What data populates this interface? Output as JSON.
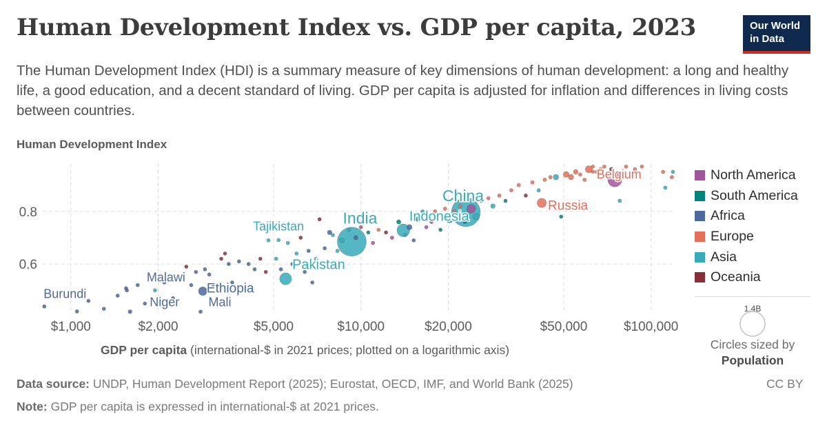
{
  "title": "Human Development Index vs. GDP per capita, 2023",
  "subtitle": "The Human Development Index (HDI) is a summary measure of key dimensions of human development: a long and healthy life, a good education, and a decent standard of living. GDP per capita is adjusted for inflation and differences in living costs between countries.",
  "logo": {
    "line1": "Our World",
    "line2": "in Data"
  },
  "footer": {
    "source_label": "Data source:",
    "source_text": " UNDP, Human Development Report (2025); Eurostat, OECD, IMF, and World Bank (2025)",
    "note_label": "Note:",
    "note_text": " GDP per capita is expressed in international-$ at 2021 prices.",
    "license": "CC BY"
  },
  "size_legend": {
    "value_label": "1.4B",
    "caption": "Circles sized by",
    "caption_bold": "Population"
  },
  "colors": {
    "North America": "#a2559c",
    "South America": "#00847e",
    "Africa": "#4c6a9c",
    "Europe": "#e56e5a",
    "Asia": "#38aaba",
    "Oceania": "#883039"
  },
  "chart_data": {
    "type": "scatter",
    "ylabel": "Human Development Index",
    "xlabel_bold": "GDP per capita",
    "xlabel_rest": " (international-$ in 2021 prices; plotted on a logarithmic axis)",
    "x_scale": "log",
    "xlim": [
      800,
      120000
    ],
    "ylim": [
      0.42,
      0.98
    ],
    "x_ticks": [
      {
        "value": 1000,
        "label": "$1,000"
      },
      {
        "value": 2000,
        "label": "$2,000"
      },
      {
        "value": 5000,
        "label": "$5,000"
      },
      {
        "value": 10000,
        "label": "$10,000"
      },
      {
        "value": 20000,
        "label": "$20,000"
      },
      {
        "value": 50000,
        "label": "$50,000"
      },
      {
        "value": 100000,
        "label": "$100,000"
      }
    ],
    "y_ticks": [
      {
        "value": 0.6,
        "label": "0.6"
      },
      {
        "value": 0.8,
        "label": "0.8"
      }
    ],
    "grid": true,
    "legend_position": "right",
    "legend": [
      "North America",
      "South America",
      "Africa",
      "Europe",
      "Asia",
      "Oceania"
    ],
    "labeled_points": [
      {
        "label": "China",
        "x": 23000,
        "y": 0.797,
        "continent": "Asia",
        "population_m": 1420,
        "label_dx": -4,
        "label_dy": -16,
        "label_size": 23,
        "anchor": "middle"
      },
      {
        "label": "India",
        "x": 9300,
        "y": 0.685,
        "continent": "Asia",
        "population_m": 1430,
        "label_dx": 12,
        "label_dy": -26,
        "label_size": 23,
        "anchor": "middle"
      },
      {
        "label": "Indonesia",
        "x": 14000,
        "y": 0.728,
        "continent": "Asia",
        "population_m": 277,
        "label_dx": 52,
        "label_dy": -14,
        "label_size": 20,
        "anchor": "middle"
      },
      {
        "label": "Russia",
        "x": 42000,
        "y": 0.832,
        "continent": "Europe",
        "population_m": 144,
        "label_dx": 38,
        "label_dy": 10,
        "label_size": 19,
        "anchor": "middle"
      },
      {
        "label": "Belgium",
        "x": 63000,
        "y": 0.951,
        "continent": "Europe",
        "population_m": 11.7,
        "label_dx": 38,
        "label_dy": 10,
        "label_size": 18,
        "anchor": "middle"
      },
      {
        "label": "Tajikistan",
        "x": 5200,
        "y": 0.691,
        "continent": "Asia",
        "population_m": 10,
        "label_dx": 0,
        "label_dy": -14,
        "label_size": 18,
        "anchor": "middle"
      },
      {
        "label": "Pakistan",
        "x": 5500,
        "y": 0.544,
        "continent": "Asia",
        "population_m": 240,
        "label_dx": 48,
        "label_dy": -14,
        "label_size": 20,
        "anchor": "middle"
      },
      {
        "label": "Malawi",
        "x": 1550,
        "y": 0.508,
        "continent": "Africa",
        "population_m": 20,
        "label_dx": 58,
        "label_dy": -10,
        "label_size": 18,
        "anchor": "middle"
      },
      {
        "label": "Ethiopia",
        "x": 2850,
        "y": 0.497,
        "continent": "Africa",
        "population_m": 126,
        "label_dx": 40,
        "label_dy": 2,
        "label_size": 19,
        "anchor": "middle"
      },
      {
        "label": "Burundi",
        "x": 810,
        "y": 0.439,
        "continent": "Africa",
        "population_m": 13,
        "label_dx": 30,
        "label_dy": -12,
        "label_size": 18,
        "anchor": "middle"
      },
      {
        "label": "Niger",
        "x": 1600,
        "y": 0.419,
        "continent": "Africa",
        "population_m": 27,
        "label_dx": 50,
        "label_dy": -8,
        "label_size": 18,
        "anchor": "middle"
      },
      {
        "label": "Mali",
        "x": 2800,
        "y": 0.419,
        "continent": "Africa",
        "population_m": 23,
        "label_dx": 28,
        "label_dy": -8,
        "label_size": 18,
        "anchor": "middle"
      }
    ],
    "points": [
      [
        1050,
        0.42,
        "Africa",
        10
      ],
      [
        1150,
        0.46,
        "Africa",
        8
      ],
      [
        1300,
        0.43,
        "Africa",
        6
      ],
      [
        1450,
        0.48,
        "Africa",
        12
      ],
      [
        1560,
        0.5,
        "Africa",
        9
      ],
      [
        1700,
        0.52,
        "Africa",
        15
      ],
      [
        1800,
        0.45,
        "Africa",
        7
      ],
      [
        1950,
        0.5,
        "Asia",
        5
      ],
      [
        2100,
        0.53,
        "Africa",
        12
      ],
      [
        2250,
        0.47,
        "Africa",
        6
      ],
      [
        2400,
        0.55,
        "Africa",
        18
      ],
      [
        2500,
        0.59,
        "Oceania",
        4
      ],
      [
        2600,
        0.52,
        "Africa",
        10
      ],
      [
        2700,
        0.57,
        "Africa",
        8
      ],
      [
        2900,
        0.58,
        "Africa",
        9
      ],
      [
        3000,
        0.56,
        "Africa",
        14
      ],
      [
        3100,
        0.52,
        "Africa",
        7
      ],
      [
        3200,
        0.46,
        "Africa",
        6
      ],
      [
        3300,
        0.62,
        "Oceania",
        2
      ],
      [
        3400,
        0.64,
        "Oceania",
        1
      ],
      [
        3500,
        0.6,
        "Africa",
        20
      ],
      [
        3600,
        0.53,
        "Africa",
        9
      ],
      [
        3800,
        0.61,
        "Africa",
        12
      ],
      [
        4000,
        0.5,
        "Africa",
        6
      ],
      [
        4100,
        0.6,
        "Africa",
        8
      ],
      [
        4300,
        0.58,
        "Africa",
        9
      ],
      [
        4500,
        0.62,
        "Oceania",
        1
      ],
      [
        4700,
        0.57,
        "Oceania",
        1
      ],
      [
        4800,
        0.69,
        "Asia",
        5
      ],
      [
        5100,
        0.62,
        "Asia",
        4
      ],
      [
        5300,
        0.58,
        "Africa",
        20
      ],
      [
        5600,
        0.68,
        "Asia",
        3
      ],
      [
        5800,
        0.6,
        "Africa",
        11
      ],
      [
        6000,
        0.64,
        "Asia",
        6
      ],
      [
        6200,
        0.7,
        "Oceania",
        1
      ],
      [
        6400,
        0.57,
        "Africa",
        10
      ],
      [
        6600,
        0.65,
        "Africa",
        12
      ],
      [
        6800,
        0.53,
        "Africa",
        9
      ],
      [
        7000,
        0.62,
        "Asia",
        17
      ],
      [
        7200,
        0.77,
        "Oceania",
        1
      ],
      [
        7500,
        0.66,
        "Africa",
        6
      ],
      [
        7800,
        0.72,
        "Africa",
        35
      ],
      [
        8000,
        0.71,
        "Asia",
        5
      ],
      [
        8300,
        0.65,
        "Asia",
        6
      ],
      [
        8600,
        0.69,
        "Asia",
        37
      ],
      [
        9100,
        0.73,
        "Asia",
        5
      ],
      [
        9600,
        0.7,
        "Africa",
        32
      ],
      [
        10000,
        0.74,
        "North America",
        2
      ],
      [
        10600,
        0.72,
        "South America",
        10
      ],
      [
        11000,
        0.68,
        "North America",
        6
      ],
      [
        11500,
        0.73,
        "Europe",
        3
      ],
      [
        12200,
        0.72,
        "Oceania",
        1
      ],
      [
        12800,
        0.7,
        "North America",
        4
      ],
      [
        13500,
        0.76,
        "South America",
        33
      ],
      [
        14200,
        0.71,
        "Asia",
        8
      ],
      [
        14700,
        0.74,
        "Africa",
        47
      ],
      [
        15200,
        0.69,
        "Africa",
        18
      ],
      [
        15800,
        0.77,
        "South America",
        50
      ],
      [
        16300,
        0.8,
        "Asia",
        3
      ],
      [
        16800,
        0.74,
        "North America",
        1
      ],
      [
        17500,
        0.76,
        "North America",
        1
      ],
      [
        18000,
        0.8,
        "Europe",
        6
      ],
      [
        18800,
        0.73,
        "South America",
        7
      ],
      [
        19500,
        0.81,
        "Europe",
        4
      ],
      [
        20200,
        0.77,
        "Asia",
        90
      ],
      [
        21000,
        0.8,
        "Europe",
        3
      ],
      [
        22000,
        0.82,
        "Europe",
        2
      ],
      [
        22800,
        0.76,
        "South America",
        17
      ],
      [
        24000,
        0.81,
        "North America",
        128
      ],
      [
        25000,
        0.78,
        "Asia",
        70
      ],
      [
        26000,
        0.84,
        "Europe",
        8
      ],
      [
        27500,
        0.85,
        "Europe",
        4
      ],
      [
        28500,
        0.82,
        "Asia",
        36
      ],
      [
        30000,
        0.86,
        "Europe",
        9
      ],
      [
        31500,
        0.84,
        "South America",
        3
      ],
      [
        33000,
        0.88,
        "Europe",
        2
      ],
      [
        35000,
        0.9,
        "Europe",
        10
      ],
      [
        37000,
        0.86,
        "Oceania",
        1
      ],
      [
        39000,
        0.91,
        "Europe",
        5
      ],
      [
        41000,
        0.88,
        "Asia",
        23
      ],
      [
        43000,
        0.92,
        "Europe",
        10
      ],
      [
        45000,
        0.93,
        "Europe",
        2
      ],
      [
        47000,
        0.93,
        "Asia",
        52
      ],
      [
        49000,
        0.78,
        "South America",
        1
      ],
      [
        51000,
        0.94,
        "Europe",
        59
      ],
      [
        53000,
        0.93,
        "Europe",
        48
      ],
      [
        55000,
        0.95,
        "Europe",
        38
      ],
      [
        57000,
        0.94,
        "Europe",
        5
      ],
      [
        59000,
        0.92,
        "Europe",
        2
      ],
      [
        61000,
        0.96,
        "Europe",
        84
      ],
      [
        63000,
        0.97,
        "Europe",
        17
      ],
      [
        65000,
        0.95,
        "Europe",
        9
      ],
      [
        67000,
        0.96,
        "Europe",
        10
      ],
      [
        69000,
        0.97,
        "Europe",
        6
      ],
      [
        71000,
        0.94,
        "Asia",
        5
      ],
      [
        73000,
        0.96,
        "Oceania",
        26
      ],
      [
        75000,
        0.92,
        "North America",
        335
      ],
      [
        78000,
        0.84,
        "Asia",
        3
      ],
      [
        82000,
        0.97,
        "Europe",
        5
      ],
      [
        88000,
        0.96,
        "Europe",
        5
      ],
      [
        93000,
        0.97,
        "Europe",
        5
      ],
      [
        110000,
        0.95,
        "Europe",
        1
      ],
      [
        112000,
        0.89,
        "Asia",
        3
      ],
      [
        118000,
        0.93,
        "Europe",
        1
      ],
      [
        119000,
        0.95,
        "Asia",
        6
      ]
    ]
  }
}
